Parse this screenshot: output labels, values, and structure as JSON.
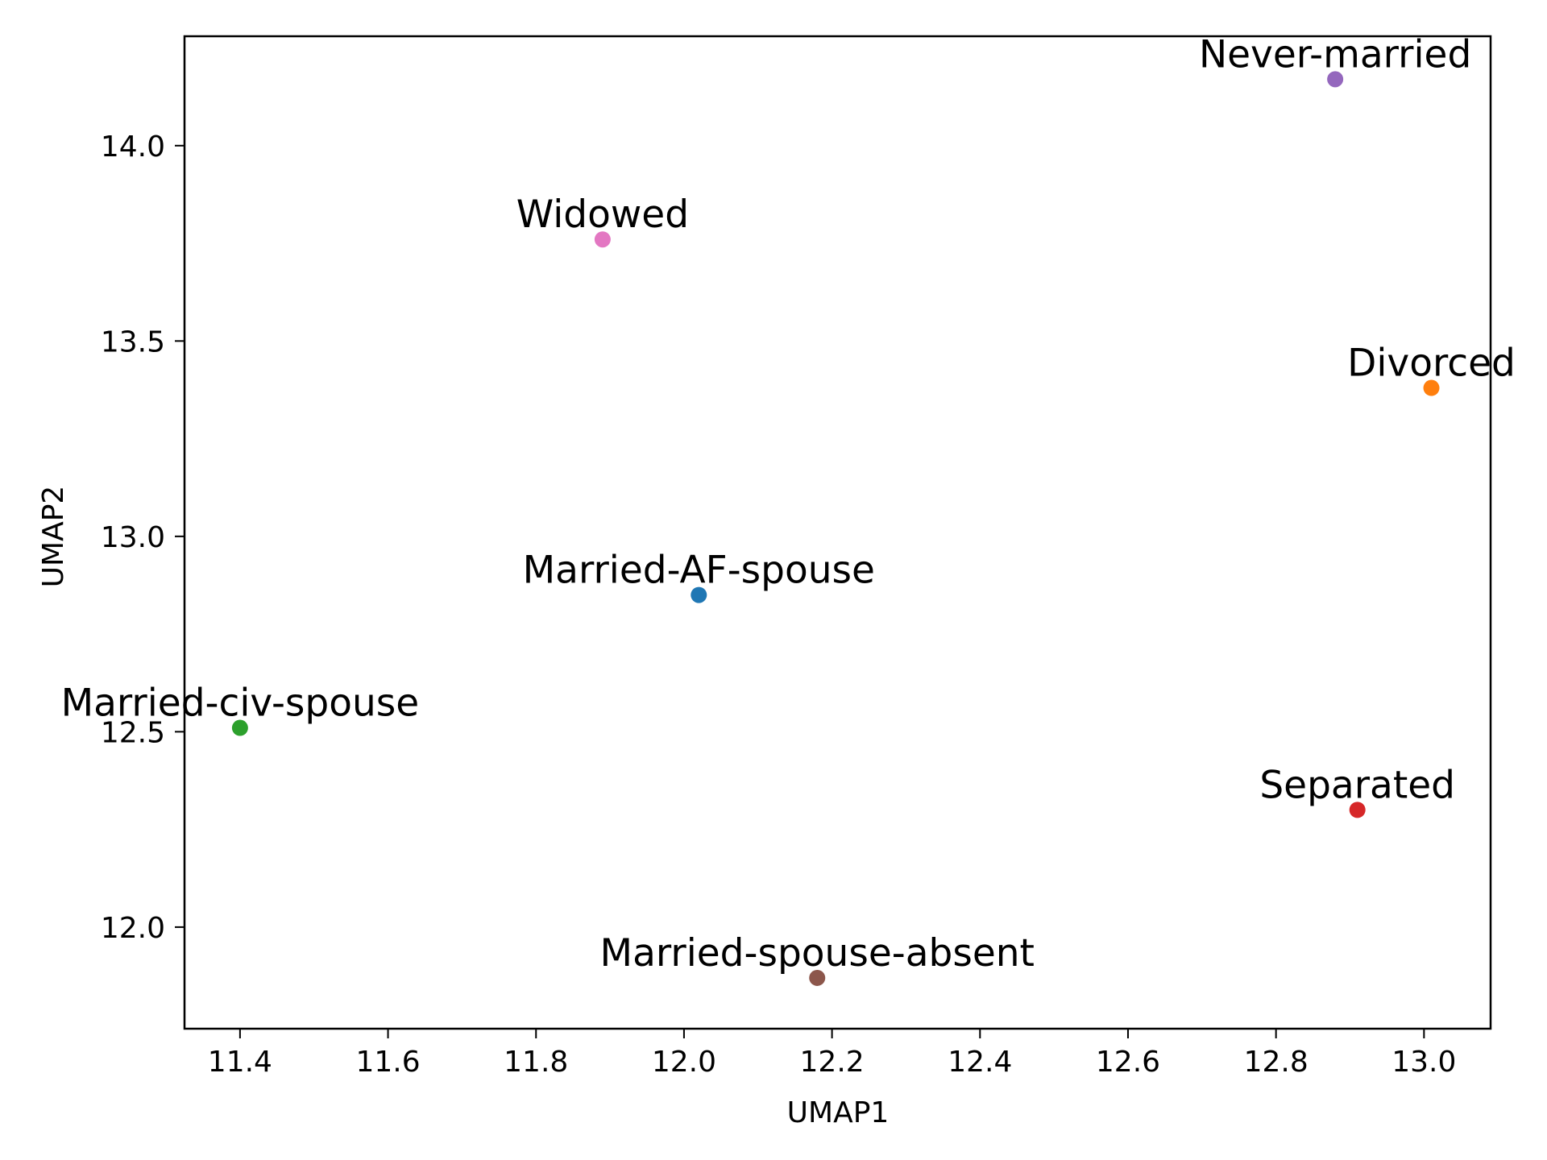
{
  "chart_data": {
    "type": "scatter",
    "xlabel": "UMAP1",
    "ylabel": "UMAP2",
    "xlim": [
      11.325,
      13.09
    ],
    "ylim": [
      11.74,
      14.28
    ],
    "grid": false,
    "xticks": [
      11.4,
      11.6,
      11.8,
      12.0,
      12.2,
      12.4,
      12.6,
      12.8,
      13.0
    ],
    "yticks": [
      12.0,
      12.5,
      13.0,
      13.5,
      14.0
    ],
    "xtick_labels": [
      "11.4",
      "11.6",
      "11.8",
      "12.0",
      "12.2",
      "12.4",
      "12.6",
      "12.8",
      "13.0"
    ],
    "ytick_labels": [
      "12.0",
      "12.5",
      "13.0",
      "13.5",
      "14.0"
    ],
    "points": [
      {
        "label": "Married-AF-spouse",
        "x": 12.02,
        "y": 12.85,
        "color": "#1f77b4"
      },
      {
        "label": "Divorced",
        "x": 13.01,
        "y": 13.38,
        "color": "#ff7f0e"
      },
      {
        "label": "Married-civ-spouse",
        "x": 11.4,
        "y": 12.51,
        "color": "#2ca02c"
      },
      {
        "label": "Separated",
        "x": 12.91,
        "y": 12.3,
        "color": "#d62728"
      },
      {
        "label": "Never-married",
        "x": 12.88,
        "y": 14.17,
        "color": "#9467bd"
      },
      {
        "label": "Married-spouse-absent",
        "x": 12.18,
        "y": 11.87,
        "color": "#8c564b"
      },
      {
        "label": "Widowed",
        "x": 11.89,
        "y": 13.76,
        "color": "#e377c2"
      }
    ]
  }
}
